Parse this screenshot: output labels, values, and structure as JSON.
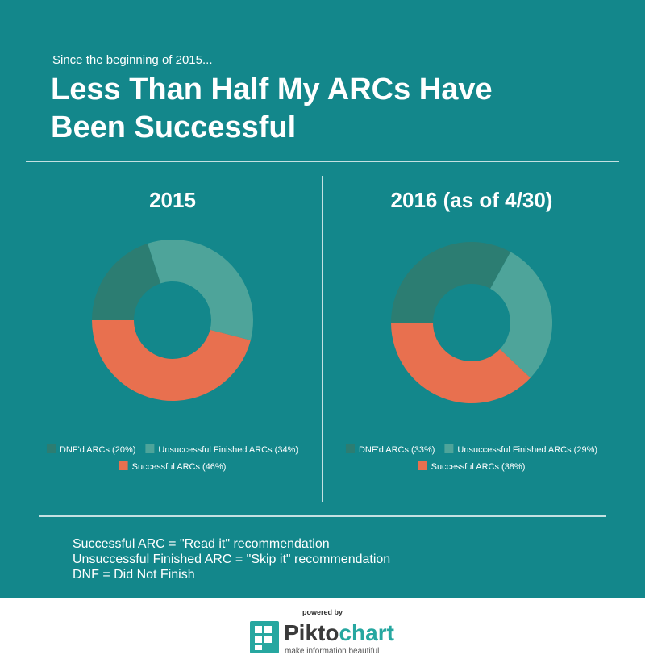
{
  "header": {
    "kicker": "Since the beginning of 2015...",
    "title_lines": [
      "Less Than Half My ARCs Have",
      "Been Successful"
    ]
  },
  "chart_data": [
    {
      "type": "donut",
      "title": "2015",
      "categories": [
        "DNF'd ARCs (20%)",
        "Unsuccessful Finished ARCs (34%)",
        "Successful ARCs (46%)"
      ],
      "values": [
        20,
        34,
        46
      ],
      "colors": [
        "#2c7d72",
        "#4ea49a",
        "#e8704f"
      ]
    },
    {
      "type": "donut",
      "title": "2016 (as of 4/30)",
      "categories": [
        "DNF'd ARCs (33%)",
        "Unsuccessful Finished ARCs (29%)",
        "Successful ARCs (38%)"
      ],
      "values": [
        33,
        29,
        38
      ],
      "colors": [
        "#2c7d72",
        "#4ea49a",
        "#e8704f"
      ]
    }
  ],
  "notes": [
    "Successful ARC = \"Read it\" recommendation",
    "Unsuccessful Finished ARC = \"Skip it\" recommendation",
    "DNF = Did Not Finish"
  ],
  "footer": {
    "powered_by": "powered by",
    "brand_dark": "Pikto",
    "brand_light": "chart",
    "tagline": "make information beautiful"
  }
}
